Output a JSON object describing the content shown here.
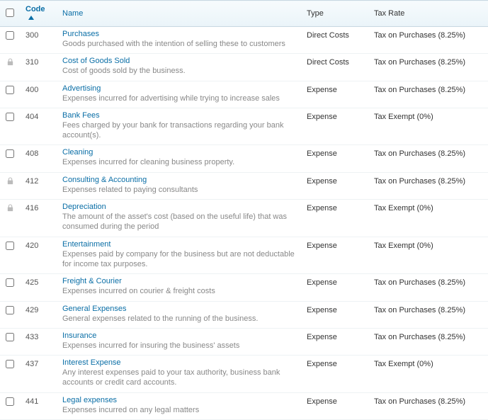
{
  "columns": {
    "code": "Code",
    "name": "Name",
    "type": "Type",
    "tax": "Tax Rate"
  },
  "rows": [
    {
      "locked": false,
      "code": "300",
      "name": "Purchases",
      "desc": "Goods purchased with the intention of selling these to customers",
      "type": "Direct Costs",
      "tax": "Tax on Purchases (8.25%)"
    },
    {
      "locked": true,
      "code": "310",
      "name": "Cost of Goods Sold",
      "desc": "Cost of goods sold by the business.",
      "type": "Direct Costs",
      "tax": "Tax on Purchases (8.25%)"
    },
    {
      "locked": false,
      "code": "400",
      "name": "Advertising",
      "desc": "Expenses incurred for advertising while trying to increase sales",
      "type": "Expense",
      "tax": "Tax on Purchases (8.25%)"
    },
    {
      "locked": false,
      "code": "404",
      "name": "Bank Fees",
      "desc": "Fees charged by your bank for transactions regarding your bank account(s).",
      "type": "Expense",
      "tax": "Tax Exempt (0%)"
    },
    {
      "locked": false,
      "code": "408",
      "name": "Cleaning",
      "desc": "Expenses incurred for cleaning business property.",
      "type": "Expense",
      "tax": "Tax on Purchases (8.25%)"
    },
    {
      "locked": true,
      "code": "412",
      "name": "Consulting & Accounting",
      "desc": "Expenses related to paying consultants",
      "type": "Expense",
      "tax": "Tax on Purchases (8.25%)"
    },
    {
      "locked": true,
      "code": "416",
      "name": "Depreciation",
      "desc": "The amount of the asset's cost (based on the useful life) that was consumed during the period",
      "type": "Expense",
      "tax": "Tax Exempt (0%)"
    },
    {
      "locked": false,
      "code": "420",
      "name": "Entertainment",
      "desc": "Expenses paid by company for the business but are not deductable for income tax purposes.",
      "type": "Expense",
      "tax": "Tax Exempt (0%)"
    },
    {
      "locked": false,
      "code": "425",
      "name": "Freight & Courier",
      "desc": "Expenses incurred on courier & freight costs",
      "type": "Expense",
      "tax": "Tax on Purchases (8.25%)"
    },
    {
      "locked": false,
      "code": "429",
      "name": "General Expenses",
      "desc": "General expenses related to the running of the business.",
      "type": "Expense",
      "tax": "Tax on Purchases (8.25%)"
    },
    {
      "locked": false,
      "code": "433",
      "name": "Insurance",
      "desc": "Expenses incurred for insuring the business' assets",
      "type": "Expense",
      "tax": "Tax on Purchases (8.25%)"
    },
    {
      "locked": false,
      "code": "437",
      "name": "Interest Expense",
      "desc": "Any interest expenses paid to your tax authority, business bank accounts or credit card accounts.",
      "type": "Expense",
      "tax": "Tax Exempt (0%)"
    },
    {
      "locked": false,
      "code": "441",
      "name": "Legal expenses",
      "desc": "Expenses incurred on any legal matters",
      "type": "Expense",
      "tax": "Tax on Purchases (8.25%)"
    }
  ]
}
